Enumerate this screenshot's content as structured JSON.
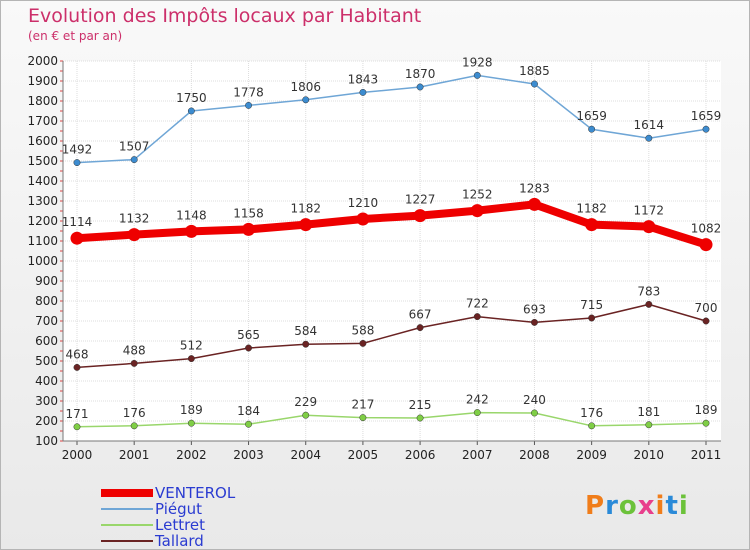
{
  "title": "Evolution des Impôts locaux par Habitant",
  "subtitle": "(en € et par an)",
  "brand": {
    "text": "Proxiti",
    "colors": [
      "#f07d1a",
      "#2a8ad8",
      "#6cc23a",
      "#e83f8c",
      "#f07d1a",
      "#2a8ad8",
      "#6cc23a"
    ]
  },
  "chart_data": {
    "type": "line",
    "x": [
      "2000",
      "2001",
      "2002",
      "2003",
      "2004",
      "2005",
      "2006",
      "2007",
      "2008",
      "2009",
      "2010",
      "2011"
    ],
    "ylim": [
      100,
      2000
    ],
    "yticks": [
      100,
      200,
      300,
      400,
      500,
      600,
      700,
      800,
      900,
      1000,
      1100,
      1200,
      1300,
      1400,
      1500,
      1600,
      1700,
      1800,
      1900,
      2000
    ],
    "grid": true,
    "legend_position": "bottom-left",
    "series": [
      {
        "name": "VENTEROL",
        "color": "#ee0000",
        "marker_color": "#ee0000",
        "thick": true,
        "values": [
          1114,
          1132,
          1148,
          1158,
          1182,
          1210,
          1227,
          1252,
          1283,
          1182,
          1172,
          1082
        ]
      },
      {
        "name": "Piégut",
        "color": "#6fa6d6",
        "marker_color": "#3c8cd0",
        "thick": false,
        "values": [
          1492,
          1507,
          1750,
          1778,
          1806,
          1843,
          1870,
          1928,
          1885,
          1659,
          1614,
          1659
        ]
      },
      {
        "name": "Lettret",
        "color": "#99d66b",
        "marker_color": "#7fce45",
        "thick": false,
        "values": [
          171,
          176,
          189,
          184,
          229,
          217,
          215,
          242,
          240,
          176,
          181,
          189
        ]
      },
      {
        "name": "Tallard",
        "color": "#6a2323",
        "marker_color": "#6a2323",
        "thick": false,
        "values": [
          468,
          488,
          512,
          565,
          584,
          588,
          667,
          722,
          693,
          715,
          783,
          700
        ]
      }
    ]
  }
}
